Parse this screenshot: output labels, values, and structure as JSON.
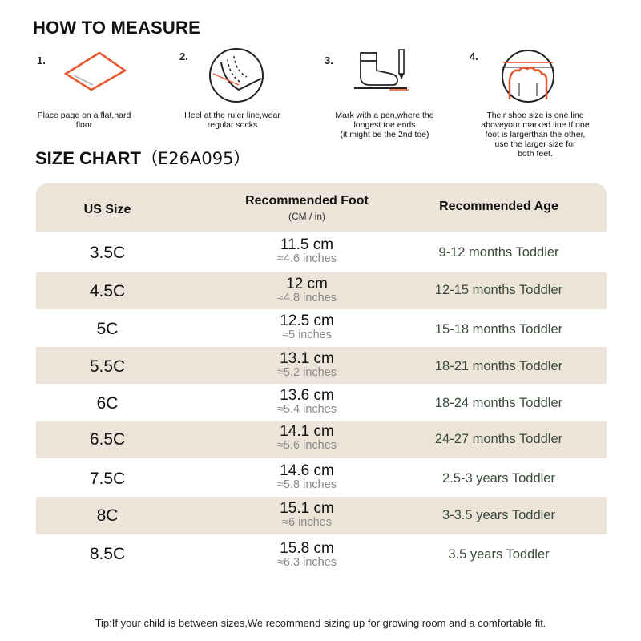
{
  "how_to": {
    "title": "HOW TO MEASURE",
    "steps": [
      {
        "num": "1.",
        "text": "Place page on a flat,hard\nfloor",
        "icon": "paper-on-floor-icon"
      },
      {
        "num": "2.",
        "text": "Heel at the ruler line,wear\nregular socks",
        "icon": "heel-ruler-icon"
      },
      {
        "num": "3.",
        "text": "Mark with a pen,where the\nlongest toe ends\n(it might be the 2nd toe)",
        "icon": "sock-and-pen-icon"
      },
      {
        "num": "4.",
        "text": "Their shoe size is one line\naboveyour marked line.If one\nfoot is largerthan the other,\nuse the larger size for\nboth feet.",
        "icon": "toe-line-icon"
      }
    ],
    "accent_color": "#e8552a"
  },
  "size_chart": {
    "title": "SIZE CHART",
    "code": "（E26A095）",
    "headers": {
      "us_size": "US Size",
      "foot": "Recommended Foot",
      "foot_sub": "(CM / in)",
      "age": "Recommended Age"
    },
    "rows": [
      {
        "us": "3.5C",
        "cm": "11.5 cm",
        "inch": "≈4.6 inches",
        "age": "9-12 months Toddler"
      },
      {
        "us": "4.5C",
        "cm": "12 cm",
        "inch": "≈4.8 inches",
        "age": "12-15 months Toddler"
      },
      {
        "us": "5C",
        "cm": "12.5 cm",
        "inch": "≈5 inches",
        "age": "15-18 months Toddler"
      },
      {
        "us": "5.5C",
        "cm": "13.1 cm",
        "inch": "≈5.2 inches",
        "age": "18-21 months Toddler"
      },
      {
        "us": "6C",
        "cm": "13.6 cm",
        "inch": "≈5.4 inches",
        "age": "18-24 months Toddler"
      },
      {
        "us": "6.5C",
        "cm": "14.1 cm",
        "inch": "≈5.6 inches",
        "age": "24-27 months Toddler"
      },
      {
        "us": "7.5C",
        "cm": "14.6 cm",
        "inch": "≈5.8 inches",
        "age": "2.5-3 years Toddler"
      },
      {
        "us": "8C",
        "cm": "15.1 cm",
        "inch": "≈6 inches",
        "age": "3-3.5 years Toddler"
      },
      {
        "us": "8.5C",
        "cm": "15.8 cm",
        "inch": "≈6.3 inches",
        "age": "3.5 years Toddler"
      }
    ],
    "band_color": "#ece4d9"
  },
  "tip": "Tip:If your child is between sizes,We recommend sizing up for growing room and a comfortable fit."
}
